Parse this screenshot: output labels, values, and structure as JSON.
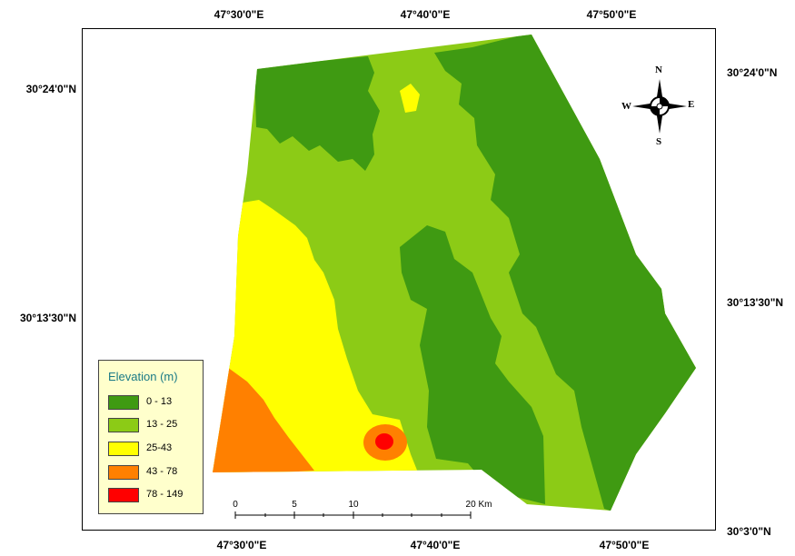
{
  "coordinates": {
    "top_longitude": [
      "47°30'0\"E",
      "47°40'0\"E",
      "47°50'0\"E"
    ],
    "bottom_longitude": [
      "47°30'0\"E",
      "47°40'0\"E",
      "47°50'0\"E"
    ],
    "left_latitude": [
      "30°24'0\"N",
      "30°13'30\"N"
    ],
    "right_latitude": [
      "30°24'0\"N",
      "30°13'30\"N",
      "30°3'0\"N"
    ]
  },
  "legend": {
    "title": "Elevation (m)",
    "items": [
      {
        "label": "0 - 13",
        "color": "#3f9a12"
      },
      {
        "label": "13 - 25",
        "color": "#8ccb16"
      },
      {
        "label": "25-43",
        "color": "#ffff00"
      },
      {
        "label": "43 - 78",
        "color": "#ff8000"
      },
      {
        "label": "78 - 149",
        "color": "#ff0000"
      }
    ]
  },
  "compass": {
    "n": "N",
    "s": "S",
    "e": "E",
    "w": "W"
  },
  "scale_bar": {
    "ticks": [
      "0",
      "5",
      "10",
      "20 Km"
    ]
  },
  "colors": {
    "frame": "#000000",
    "legend_bg": "#ffffcc",
    "legend_title": "#1a7a86"
  }
}
